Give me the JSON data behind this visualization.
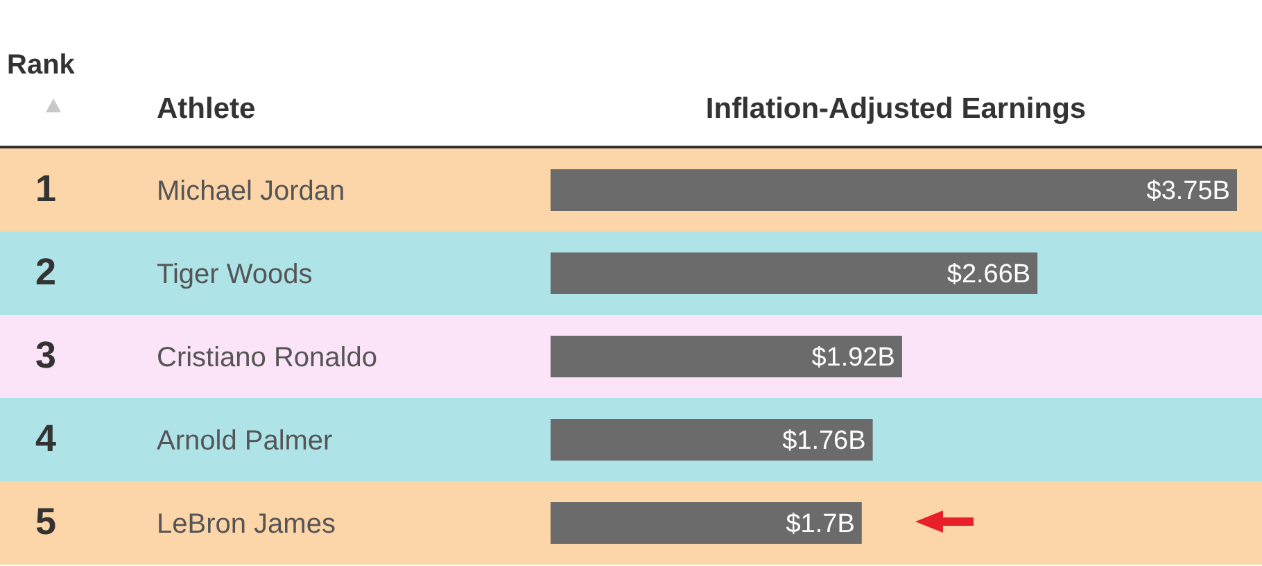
{
  "chart_data": {
    "type": "bar",
    "orientation": "horizontal",
    "xlabel": "Inflation-Adjusted Earnings",
    "ylabel": "Athlete",
    "categories": [
      "Michael Jordan",
      "Tiger Woods",
      "Cristiano Ronaldo",
      "Arnold Palmer",
      "LeBron James"
    ],
    "series": [
      {
        "color": "#6b6b6b",
        "values": [
          3.75,
          2.66,
          1.92,
          1.76,
          1.7
        ],
        "value_labels": [
          "$3.75B",
          "$2.66B",
          "$1.92B",
          "$1.76B",
          "$1.7B"
        ]
      }
    ],
    "annotations": [
      "Rank",
      "1",
      "2",
      "3",
      "4",
      "5"
    ],
    "bands": [
      {
        "axis": "y",
        "from": "Michael Jordan",
        "to": "Michael Jordan",
        "color": "#fcd5a9"
      },
      {
        "axis": "y",
        "from": "Tiger Woods",
        "to": "Tiger Woods",
        "color": "#aee4e8"
      },
      {
        "axis": "y",
        "from": "Cristiano Ronaldo",
        "to": "Cristiano Ronaldo",
        "color": "#fbe3f8"
      },
      {
        "axis": "y",
        "from": "Arnold Palmer",
        "to": "Arnold Palmer",
        "color": "#aee4e8"
      },
      {
        "axis": "y",
        "from": "LeBron James",
        "to": "LeBron James",
        "color": "#fcd5a9"
      }
    ]
  }
}
